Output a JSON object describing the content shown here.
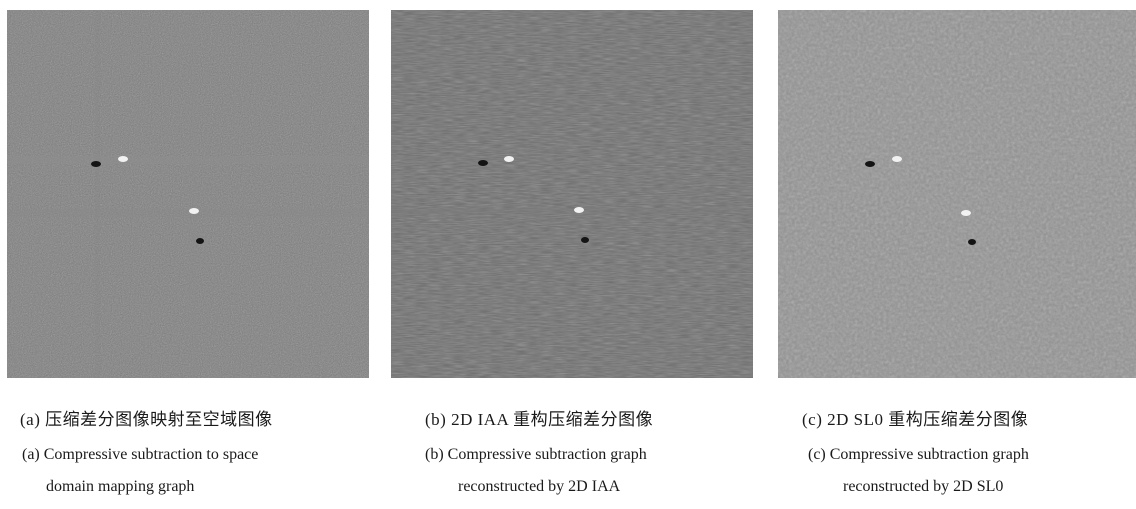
{
  "panels": [
    {
      "caption_zh": "(a) 压缩差分图像映射至空域图像",
      "caption_en_line1": "(a) Compressive subtraction to space",
      "caption_en_line2": "domain mapping graph"
    },
    {
      "caption_zh": "(b) 2D IAA 重构压缩差分图像",
      "caption_en_line1": "(b) Compressive subtraction graph",
      "caption_en_line2": "reconstructed by 2D IAA"
    },
    {
      "caption_zh": "(c) 2D SL0 重构压缩差分图像",
      "caption_en_line1": "(c) Compressive subtraction graph",
      "caption_en_line2": "reconstructed by 2D SL0"
    }
  ],
  "colors": {
    "panel_a_gray": "#7a7a7a",
    "panel_b_gray": "#6a6a6a",
    "panel_c_gray": "#8e8e8e",
    "target_bright": "#f2f2f2",
    "target_dark": "#141414"
  }
}
